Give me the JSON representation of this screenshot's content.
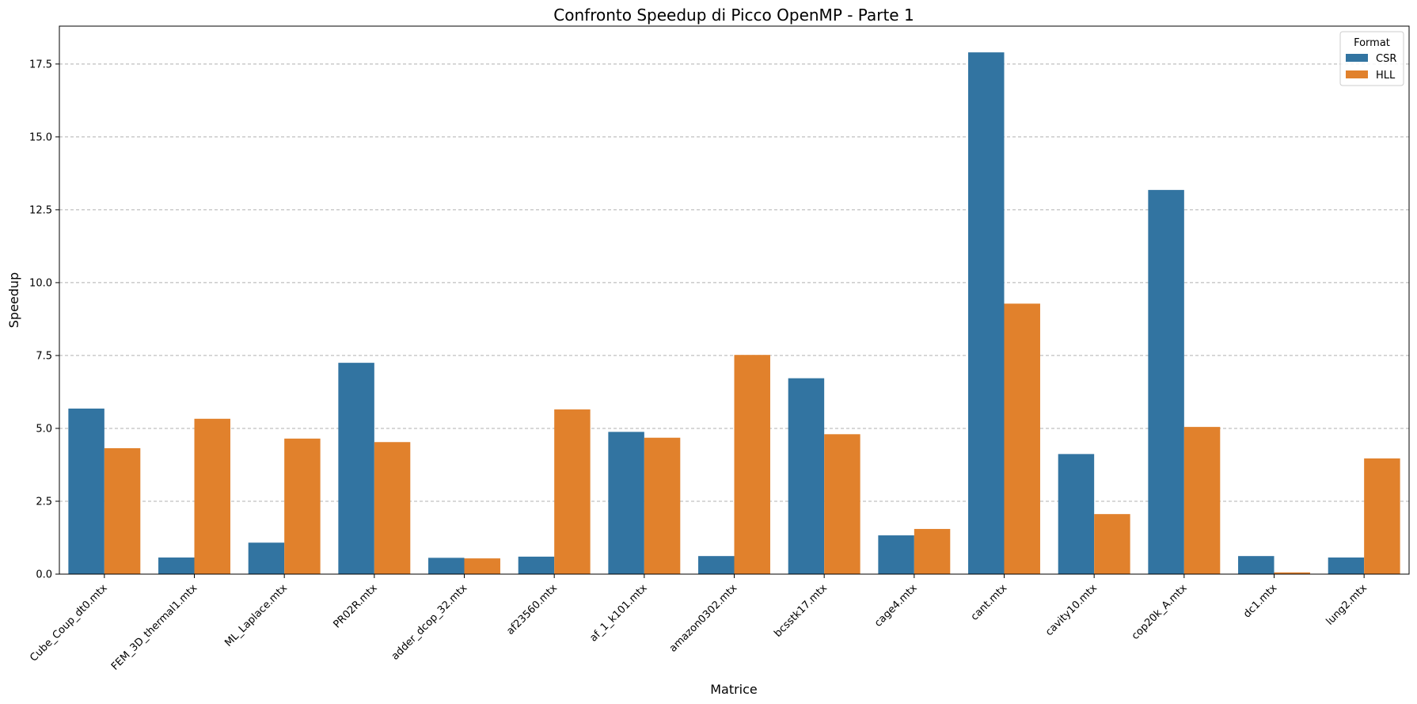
{
  "chart_data": {
    "type": "bar",
    "title": "Confronto Speedup di Picco OpenMP - Parte 1",
    "xlabel": "Matrice",
    "ylabel": "Speedup",
    "ylim": [
      0,
      18.8
    ],
    "yticks": [
      0.0,
      2.5,
      5.0,
      7.5,
      10.0,
      12.5,
      15.0,
      17.5
    ],
    "ytick_labels": [
      "0.0",
      "2.5",
      "5.0",
      "7.5",
      "10.0",
      "12.5",
      "15.0",
      "17.5"
    ],
    "grid": "y-dashed",
    "legend": {
      "title": "Format",
      "placement": "top-right"
    },
    "categories": [
      "Cube_Coup_dt0.mtx",
      "FEM_3D_thermal1.mtx",
      "ML_Laplace.mtx",
      "PR02R.mtx",
      "adder_dcop_32.mtx",
      "af23560.mtx",
      "af_1_k101.mtx",
      "amazon0302.mtx",
      "bcsstk17.mtx",
      "cage4.mtx",
      "cant.mtx",
      "cavity10.mtx",
      "cop20k_A.mtx",
      "dc1.mtx",
      "lung2.mtx"
    ],
    "series": [
      {
        "name": "CSR",
        "color": "#3274a1",
        "values": [
          5.68,
          0.57,
          1.08,
          7.25,
          0.56,
          0.6,
          4.88,
          0.62,
          6.72,
          1.33,
          17.9,
          4.12,
          13.18,
          0.62,
          0.57
        ]
      },
      {
        "name": "HLL",
        "color": "#e1812c",
        "values": [
          4.32,
          5.33,
          4.65,
          4.53,
          0.54,
          5.65,
          4.68,
          7.52,
          4.8,
          1.55,
          9.28,
          2.06,
          5.05,
          0.06,
          3.97
        ]
      }
    ]
  }
}
